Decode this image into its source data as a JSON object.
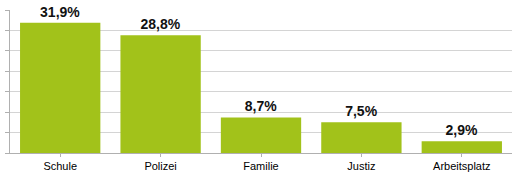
{
  "chart_data": {
    "type": "bar",
    "categories": [
      "Schule",
      "Polizei",
      "Familie",
      "Justiz",
      "Arbeitsplatz"
    ],
    "values": [
      31.9,
      28.8,
      8.7,
      7.5,
      2.9
    ],
    "value_labels": [
      "31,9%",
      "28,8%",
      "8,7%",
      "7,5%",
      "2,9%"
    ],
    "color": "#a2c21a",
    "ylim": [
      0,
      35
    ],
    "yticks": [
      0,
      5,
      10,
      15,
      20,
      25,
      30,
      35
    ],
    "grid": true,
    "data_labels": true,
    "tick_labels": "x"
  }
}
